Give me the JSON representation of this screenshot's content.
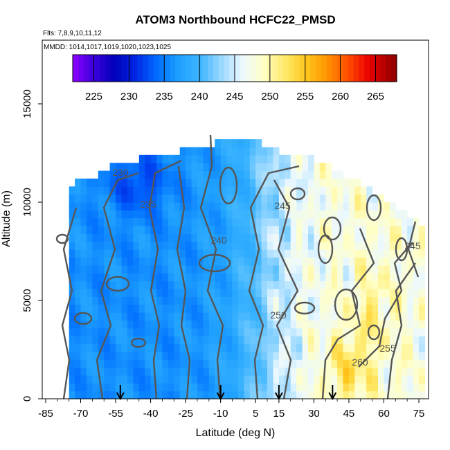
{
  "chart_data": {
    "type": "heatmap",
    "title": "ATOM3 Northbound HCFC22_PMSD",
    "flights_label": "Flts: 7,8,9,10,11,12",
    "mmdd_label": "MMDD: 1014,1017,1019,1020,1023,1025",
    "xlabel": "Latitude (deg N)",
    "ylabel": "Altitude (m)",
    "xlim": [
      -85,
      90
    ],
    "ylim": [
      0,
      17500
    ],
    "x_ticks": [
      "-85",
      "-70",
      "-55",
      "-40",
      "-25",
      "-10",
      "5",
      "15",
      "30",
      "45",
      "60",
      "75"
    ],
    "y_ticks": [
      "0",
      "5000",
      "10000",
      "15000"
    ],
    "colorbar": {
      "range": [
        222,
        268
      ],
      "ticks": [
        "225",
        "230",
        "235",
        "240",
        "245",
        "250",
        "255",
        "260",
        "265"
      ]
    },
    "contour_labels": [
      "230",
      "235",
      "240",
      "245",
      "250",
      "255",
      "260",
      "245"
    ],
    "arrows_lat": [
      -53,
      -10,
      15,
      38
    ],
    "colors": {
      "low": "#2a0bd6",
      "mid": "#c8ecff",
      "high": "#8c0000",
      "contour": "#555555"
    }
  }
}
